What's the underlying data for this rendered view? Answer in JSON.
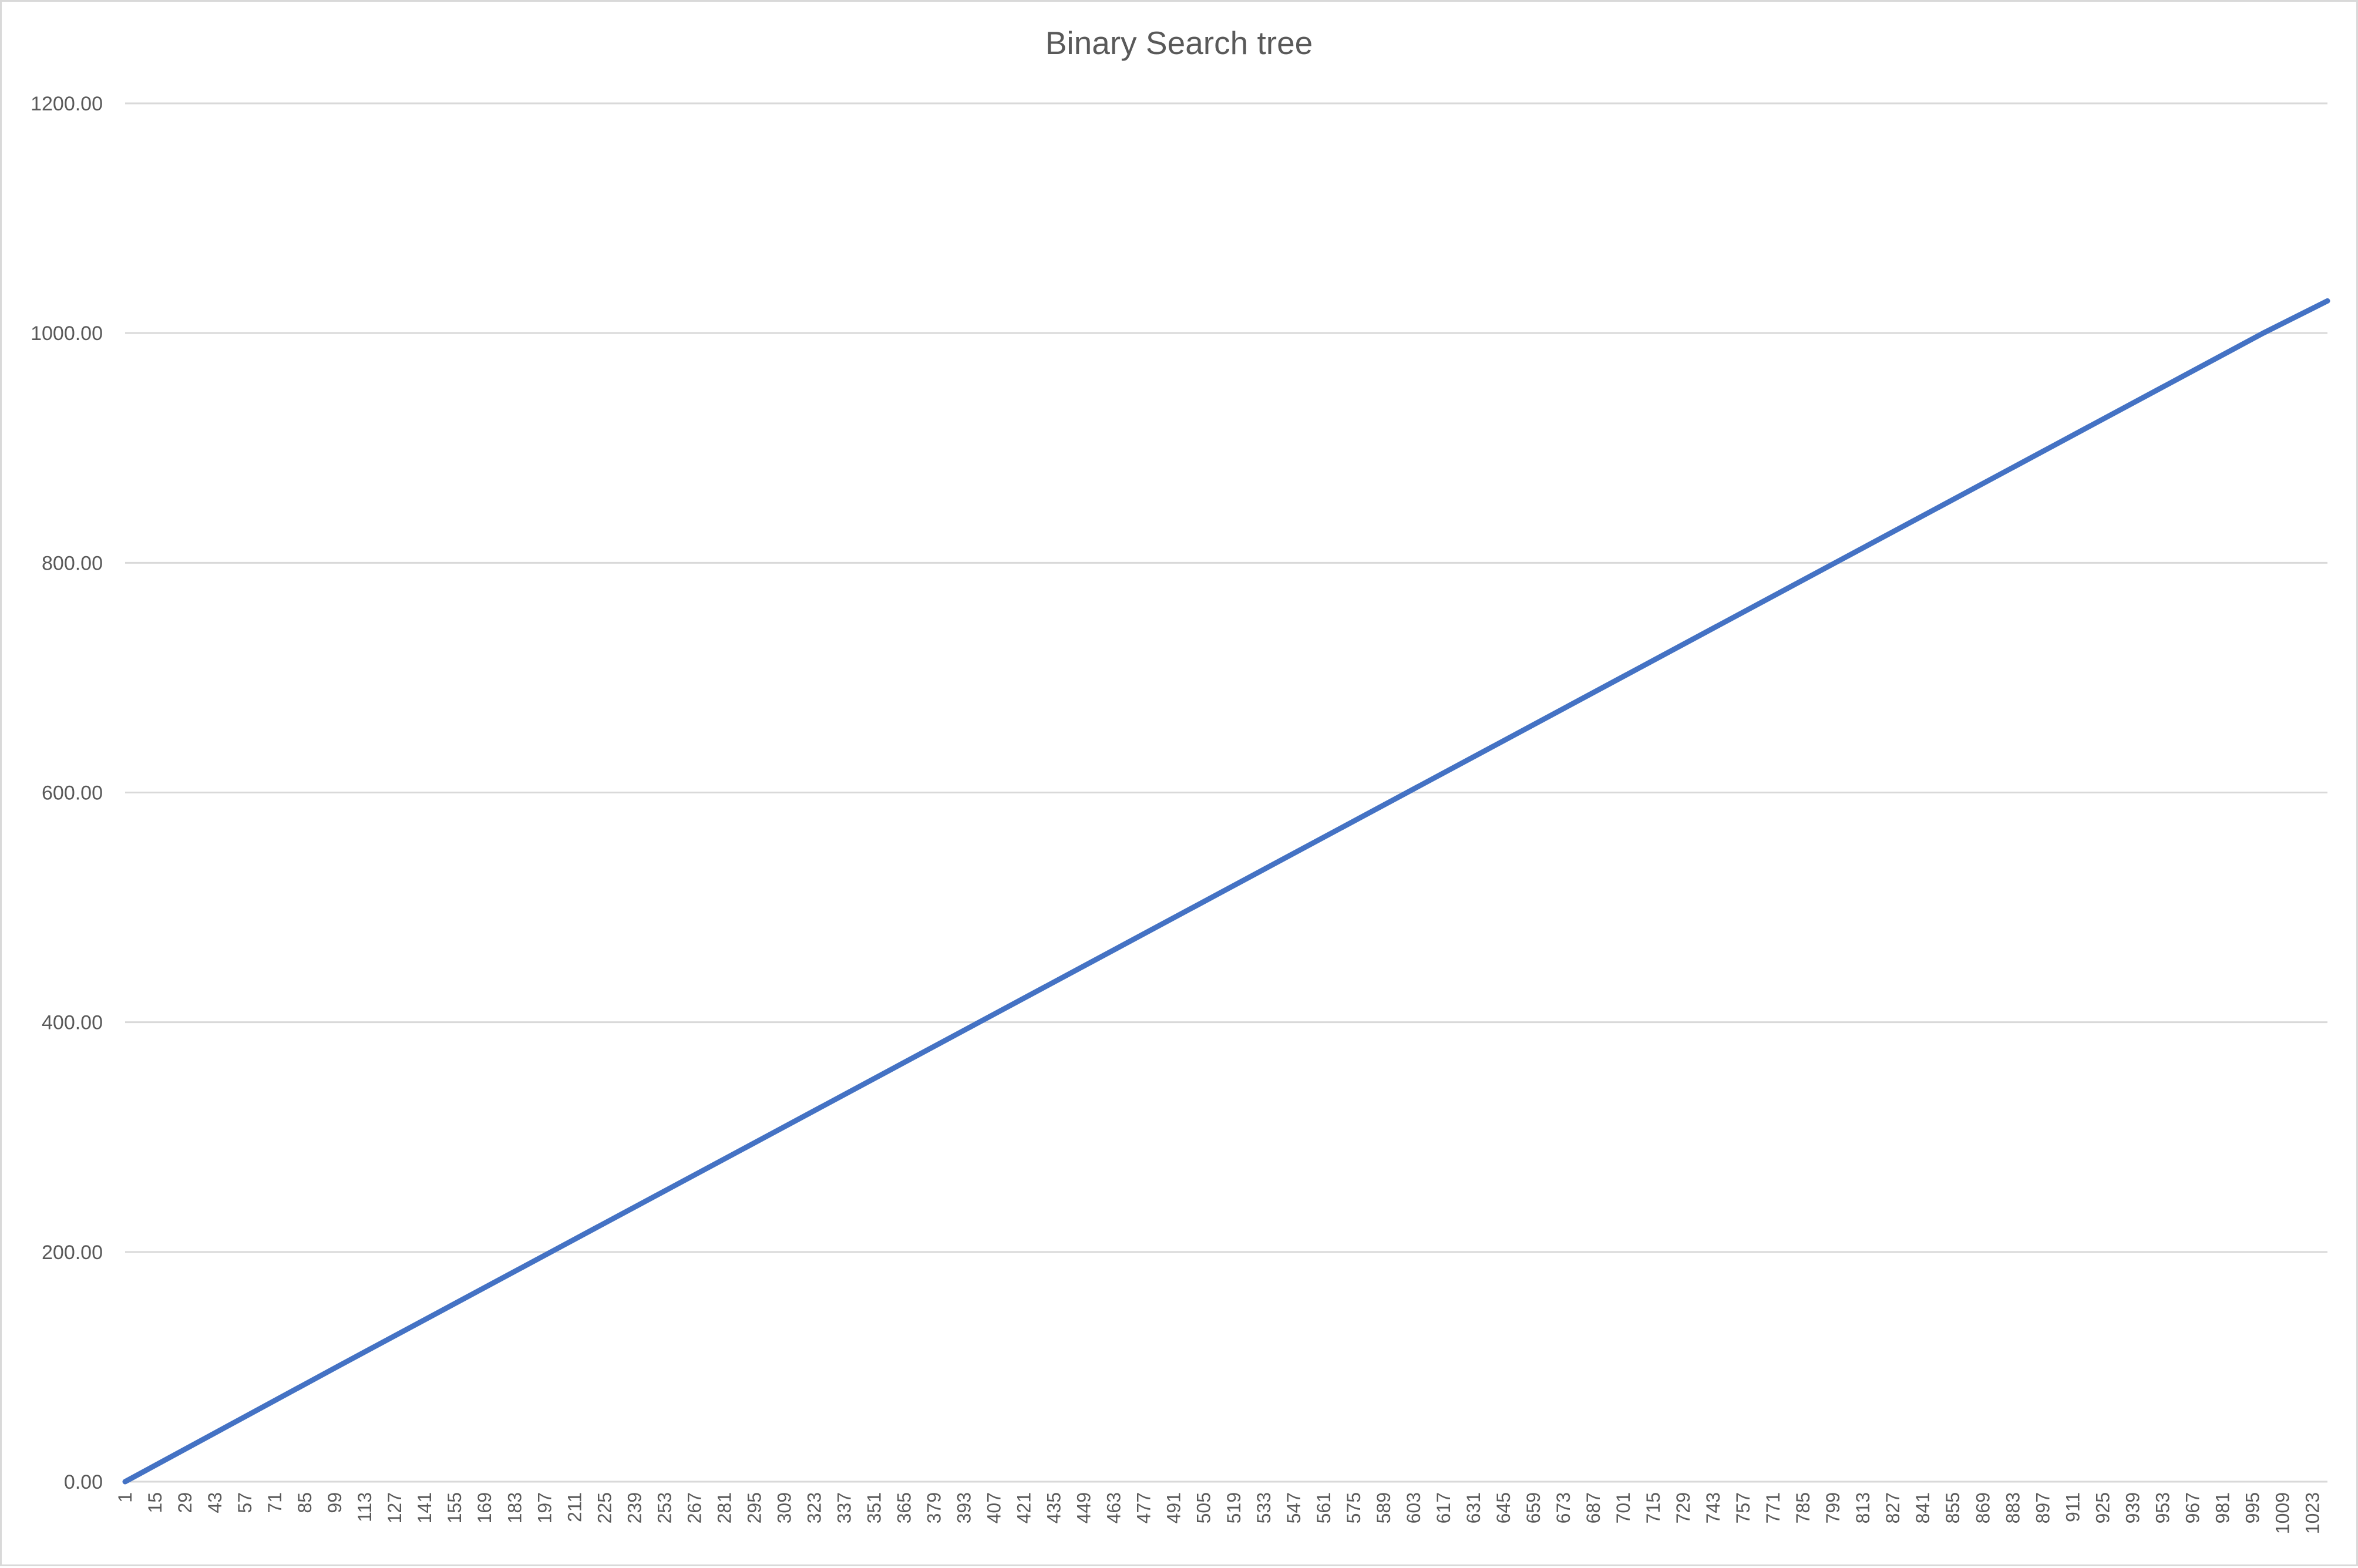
{
  "chart_data": {
    "type": "line",
    "title": "Binary Search tree",
    "xlabel": "",
    "ylabel": "",
    "ylim": [
      0,
      1200
    ],
    "y_ticks": [
      "0.00",
      "200.00",
      "400.00",
      "600.00",
      "800.00",
      "1000.00",
      "1200.00"
    ],
    "x_range": [
      1,
      1030
    ],
    "x_tick_labels": [
      "1",
      "15",
      "29",
      "43",
      "57",
      "71",
      "85",
      "99",
      "113",
      "127",
      "141",
      "155",
      "169",
      "183",
      "197",
      "211",
      "225",
      "239",
      "253",
      "267",
      "281",
      "295",
      "309",
      "323",
      "337",
      "351",
      "365",
      "379",
      "393",
      "407",
      "421",
      "435",
      "449",
      "463",
      "477",
      "491",
      "505",
      "519",
      "533",
      "547",
      "561",
      "575",
      "589",
      "603",
      "617",
      "631",
      "645",
      "659",
      "673",
      "687",
      "701",
      "715",
      "729",
      "743",
      "757",
      "771",
      "785",
      "799",
      "813",
      "827",
      "841",
      "855",
      "869",
      "883",
      "897",
      "911",
      "925",
      "939",
      "953",
      "967",
      "981",
      "995",
      "1009",
      "1023"
    ],
    "grid": true,
    "legend": "none",
    "series": [
      {
        "color": "#4472c4",
        "x": [
          1,
          100,
          200,
          300,
          400,
          500,
          600,
          700,
          800,
          900,
          1000,
          1030
        ],
        "values": [
          0,
          100,
          200,
          300,
          400,
          500,
          600,
          700,
          800,
          900,
          1000,
          1028
        ]
      }
    ],
    "colors": {
      "line": "#4472c4",
      "grid": "#d9d9d9",
      "text": "#595959"
    }
  }
}
